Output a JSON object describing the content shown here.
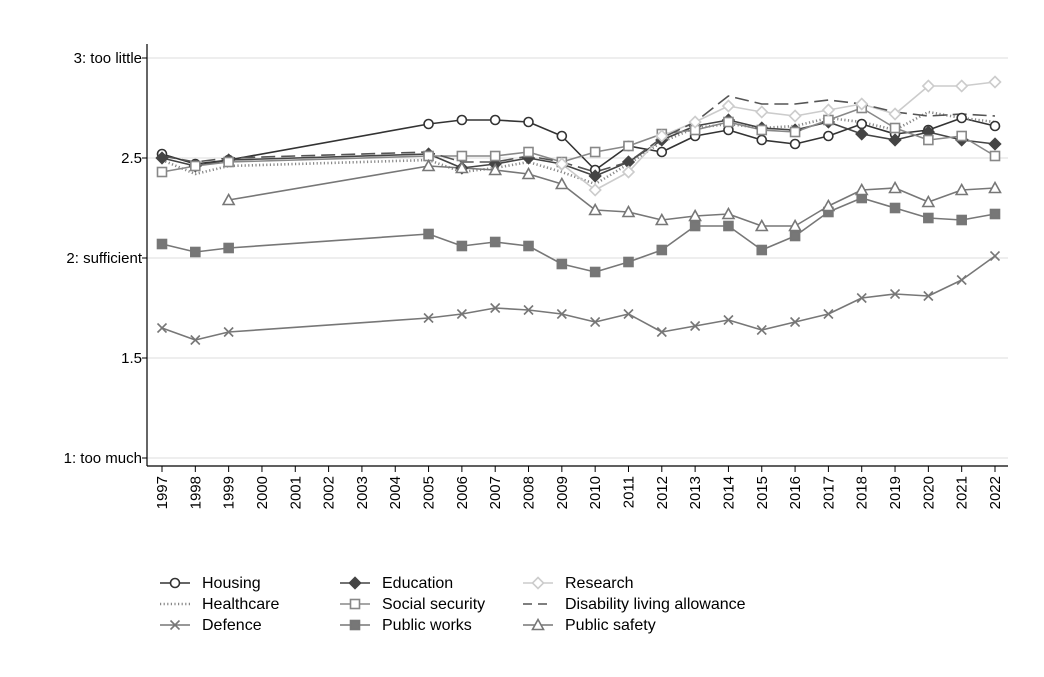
{
  "chart_data": {
    "type": "line",
    "title": "",
    "xlabel": "",
    "ylabel": "",
    "ylim": [
      1,
      3
    ],
    "yticks": [
      {
        "value": 3,
        "label": "3: too little"
      },
      {
        "value": 2.5,
        "label": "2.5"
      },
      {
        "value": 2,
        "label": "2: sufficient"
      },
      {
        "value": 1.5,
        "label": "1.5"
      },
      {
        "value": 1,
        "label": "1: too much"
      }
    ],
    "x": [
      1997,
      1998,
      1999,
      2000,
      2001,
      2002,
      2003,
      2004,
      2005,
      2006,
      2007,
      2008,
      2009,
      2010,
      2011,
      2012,
      2013,
      2014,
      2015,
      2016,
      2017,
      2018,
      2019,
      2020,
      2021,
      2022
    ],
    "x_tick_labels": [
      "1997",
      "1998",
      "1999",
      "2000",
      "2001",
      "2002",
      "2003",
      "2004",
      "2005",
      "2006",
      "2007",
      "2008",
      "2009",
      "2010",
      "2011",
      "2012",
      "2013",
      "2014",
      "2015",
      "2016",
      "2017",
      "2018",
      "2019",
      "2020",
      "2021",
      "2022"
    ],
    "grid": true,
    "legend_position": "bottom",
    "series": [
      {
        "name": "Housing",
        "marker": "circle",
        "dash": "solid",
        "color": "#333333",
        "x": [
          1997,
          1998,
          1999,
          2005,
          2006,
          2007,
          2008,
          2009,
          2010,
          2011,
          2012,
          2013,
          2014,
          2015,
          2016,
          2017,
          2018,
          2019,
          2020,
          2021,
          2022
        ],
        "y": [
          2.52,
          2.47,
          2.49,
          2.67,
          2.69,
          2.69,
          2.68,
          2.61,
          2.44,
          2.56,
          2.53,
          2.61,
          2.64,
          2.59,
          2.57,
          2.61,
          2.67,
          2.62,
          2.64,
          2.7,
          2.66
        ]
      },
      {
        "name": "Healthcare",
        "marker": "none",
        "dash": "dotted",
        "color": "#888888",
        "x": [
          1997,
          1998,
          1999,
          2005,
          2006,
          2007,
          2008,
          2009,
          2010,
          2011,
          2012,
          2013,
          2014,
          2015,
          2016,
          2017,
          2018,
          2019,
          2020,
          2021,
          2022
        ],
        "y": [
          2.49,
          2.42,
          2.46,
          2.49,
          2.43,
          2.45,
          2.48,
          2.43,
          2.37,
          2.47,
          2.58,
          2.65,
          2.67,
          2.65,
          2.66,
          2.7,
          2.68,
          2.64,
          2.73,
          2.7,
          2.68
        ]
      },
      {
        "name": "Defence",
        "marker": "x",
        "dash": "solid",
        "color": "#777777",
        "x": [
          1997,
          1998,
          1999,
          2005,
          2006,
          2007,
          2008,
          2009,
          2010,
          2011,
          2012,
          2013,
          2014,
          2015,
          2016,
          2017,
          2018,
          2019,
          2020,
          2021,
          2022
        ],
        "y": [
          1.65,
          1.59,
          1.63,
          1.7,
          1.72,
          1.75,
          1.74,
          1.72,
          1.68,
          1.72,
          1.63,
          1.66,
          1.69,
          1.64,
          1.68,
          1.72,
          1.8,
          1.82,
          1.81,
          1.89,
          2.01
        ]
      },
      {
        "name": "Education",
        "marker": "diamond",
        "dash": "solid",
        "color": "#444444",
        "x": [
          1997,
          1998,
          1999,
          2005,
          2006,
          2007,
          2008,
          2009,
          2010,
          2011,
          2012,
          2013,
          2014,
          2015,
          2016,
          2017,
          2018,
          2019,
          2020,
          2021,
          2022
        ],
        "y": [
          2.5,
          2.46,
          2.49,
          2.52,
          2.45,
          2.47,
          2.5,
          2.47,
          2.41,
          2.48,
          2.59,
          2.66,
          2.69,
          2.65,
          2.64,
          2.68,
          2.62,
          2.59,
          2.63,
          2.59,
          2.57
        ]
      },
      {
        "name": "Social security",
        "marker": "square-open",
        "dash": "solid",
        "color": "#888888",
        "x": [
          1997,
          1998,
          1999,
          2005,
          2006,
          2007,
          2008,
          2009,
          2010,
          2011,
          2012,
          2013,
          2014,
          2015,
          2016,
          2017,
          2018,
          2019,
          2020,
          2021,
          2022
        ],
        "y": [
          2.43,
          2.46,
          2.48,
          2.51,
          2.51,
          2.51,
          2.53,
          2.48,
          2.53,
          2.56,
          2.62,
          2.64,
          2.68,
          2.64,
          2.63,
          2.69,
          2.75,
          2.65,
          2.59,
          2.61,
          2.51
        ]
      },
      {
        "name": "Public works",
        "marker": "square",
        "dash": "solid",
        "color": "#777777",
        "x": [
          1997,
          1998,
          1999,
          2005,
          2006,
          2007,
          2008,
          2009,
          2010,
          2011,
          2012,
          2013,
          2014,
          2015,
          2016,
          2017,
          2018,
          2019,
          2020,
          2021,
          2022
        ],
        "y": [
          2.07,
          2.03,
          2.05,
          2.12,
          2.06,
          2.08,
          2.06,
          1.97,
          1.93,
          1.98,
          2.04,
          2.16,
          2.16,
          2.04,
          2.11,
          2.23,
          2.3,
          2.25,
          2.2,
          2.19,
          2.22
        ]
      },
      {
        "name": "Research",
        "marker": "diamond-open",
        "dash": "solid",
        "color": "#cccccc",
        "x": [
          2009,
          2010,
          2011,
          2012,
          2013,
          2014,
          2015,
          2016,
          2017,
          2018,
          2019,
          2020,
          2021,
          2022
        ],
        "y": [
          2.47,
          2.34,
          2.43,
          2.61,
          2.68,
          2.76,
          2.73,
          2.71,
          2.74,
          2.77,
          2.72,
          2.86,
          2.86,
          2.88
        ]
      },
      {
        "name": "Disability living allowance",
        "marker": "none",
        "dash": "dashed",
        "color": "#555555",
        "x": [
          1997,
          1998,
          1999,
          2005,
          2006,
          2007,
          2008,
          2009,
          2010,
          2011,
          2012,
          2013,
          2014,
          2015,
          2016,
          2017,
          2018,
          2019,
          2020,
          2021,
          2022
        ],
        "y": [
          2.51,
          2.48,
          2.5,
          2.53,
          2.48,
          2.48,
          2.51,
          2.48,
          2.43,
          2.48,
          2.6,
          2.68,
          2.81,
          2.77,
          2.77,
          2.79,
          2.77,
          2.73,
          2.71,
          2.72,
          2.71
        ]
      },
      {
        "name": "Public safety",
        "marker": "triangle",
        "dash": "solid",
        "color": "#777777",
        "x": [
          1999,
          2005,
          2006,
          2007,
          2008,
          2009,
          2010,
          2011,
          2012,
          2013,
          2014,
          2015,
          2016,
          2017,
          2018,
          2019,
          2020,
          2021,
          2022
        ],
        "y": [
          2.29,
          2.46,
          2.45,
          2.44,
          2.42,
          2.37,
          2.24,
          2.23,
          2.19,
          2.21,
          2.22,
          2.16,
          2.16,
          2.26,
          2.34,
          2.35,
          2.28,
          2.34,
          2.35
        ]
      }
    ]
  }
}
